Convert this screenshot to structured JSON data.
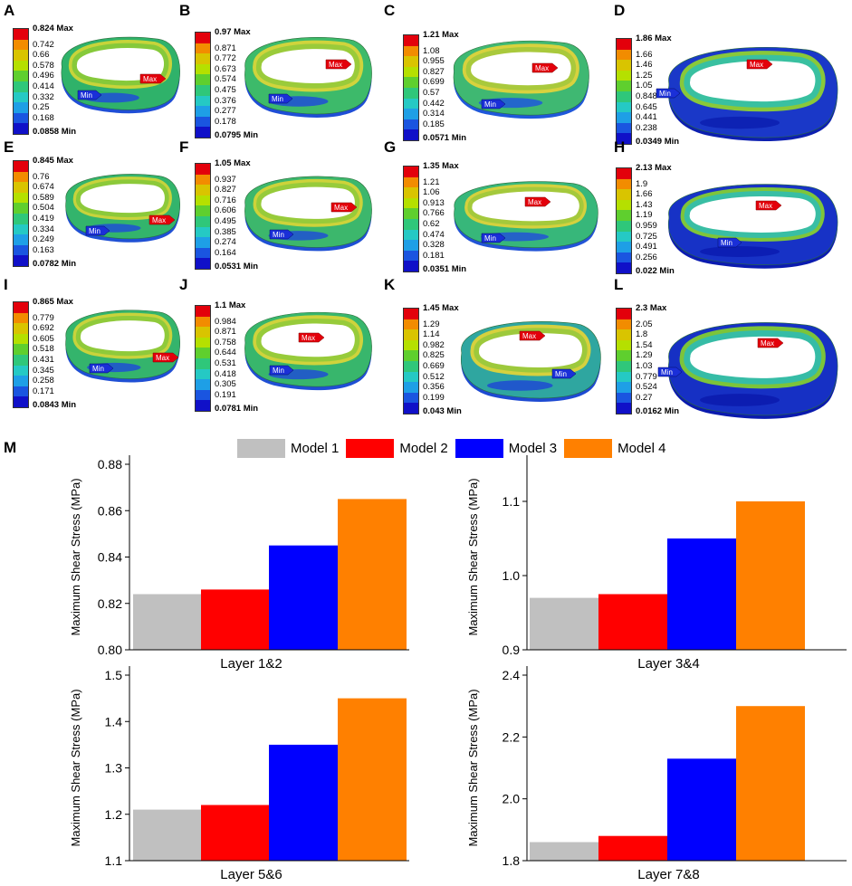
{
  "panels": [
    {
      "letter": "A",
      "max": "0.824 Max",
      "ticks": [
        "0.742",
        "0.66",
        "0.578",
        "0.496",
        "0.414",
        "0.332",
        "0.25",
        "0.168"
      ],
      "min": "0.0858 Min",
      "max_tag": "Max",
      "min_tag": "Min"
    },
    {
      "letter": "B",
      "max": "0.97 Max",
      "ticks": [
        "0.871",
        "0.772",
        "0.673",
        "0.574",
        "0.475",
        "0.376",
        "0.277",
        "0.178"
      ],
      "min": "0.0795 Min",
      "max_tag": "Max",
      "min_tag": "Min"
    },
    {
      "letter": "C",
      "max": "1.21 Max",
      "ticks": [
        "1.08",
        "0.955",
        "0.827",
        "0.699",
        "0.57",
        "0.442",
        "0.314",
        "0.185"
      ],
      "min": "0.0571 Min",
      "max_tag": "Max",
      "min_tag": "Min"
    },
    {
      "letter": "D",
      "max": "1.86 Max",
      "ticks": [
        "1.66",
        "1.46",
        "1.25",
        "1.05",
        "0.848",
        "0.645",
        "0.441",
        "0.238"
      ],
      "min": "0.0349 Min",
      "max_tag": "Max",
      "min_tag": "Min"
    },
    {
      "letter": "E",
      "max": "0.845 Max",
      "ticks": [
        "0.76",
        "0.674",
        "0.589",
        "0.504",
        "0.419",
        "0.334",
        "0.249",
        "0.163"
      ],
      "min": "0.0782 Min",
      "max_tag": "Max",
      "min_tag": "Min"
    },
    {
      "letter": "F",
      "max": "1.05 Max",
      "ticks": [
        "0.937",
        "0.827",
        "0.716",
        "0.606",
        "0.495",
        "0.385",
        "0.274",
        "0.164"
      ],
      "min": "0.0531 Min",
      "max_tag": "Max",
      "min_tag": "Min"
    },
    {
      "letter": "G",
      "max": "1.35 Max",
      "ticks": [
        "1.21",
        "1.06",
        "0.913",
        "0.766",
        "0.62",
        "0.474",
        "0.328",
        "0.181"
      ],
      "min": "0.0351 Min",
      "max_tag": "Max",
      "min_tag": "Min"
    },
    {
      "letter": "H",
      "max": "2.13 Max",
      "ticks": [
        "1.9",
        "1.66",
        "1.43",
        "1.19",
        "0.959",
        "0.725",
        "0.491",
        "0.256"
      ],
      "min": "0.022 Min",
      "max_tag": "Max",
      "min_tag": "Min"
    },
    {
      "letter": "I",
      "max": "0.865 Max",
      "ticks": [
        "0.779",
        "0.692",
        "0.605",
        "0.518",
        "0.431",
        "0.345",
        "0.258",
        "0.171"
      ],
      "min": "0.0843 Min",
      "max_tag": "Max",
      "min_tag": "Min"
    },
    {
      "letter": "J",
      "max": "1.1 Max",
      "ticks": [
        "0.984",
        "0.871",
        "0.758",
        "0.644",
        "0.531",
        "0.418",
        "0.305",
        "0.191"
      ],
      "min": "0.0781 Min",
      "max_tag": "Max",
      "min_tag": "Min"
    },
    {
      "letter": "K",
      "max": "1.45 Max",
      "ticks": [
        "1.29",
        "1.14",
        "0.982",
        "0.825",
        "0.669",
        "0.512",
        "0.356",
        "0.199"
      ],
      "min": "0.043 Min",
      "max_tag": "Max",
      "min_tag": "Min"
    },
    {
      "letter": "L",
      "max": "2.3 Max",
      "ticks": [
        "2.05",
        "1.8",
        "1.54",
        "1.29",
        "1.03",
        "0.779",
        "0.524",
        "0.27"
      ],
      "min": "0.0162 Min",
      "max_tag": "Max",
      "min_tag": "Min"
    }
  ],
  "scale_colors": [
    "#e3000b",
    "#f28c00",
    "#d9c400",
    "#b5e000",
    "#5fcf2e",
    "#2fc77a",
    "#25c9c4",
    "#1e9fe6",
    "#1a55e0",
    "#1010c8"
  ],
  "panel_m_letter": "M",
  "legend": [
    {
      "name": "Model 1",
      "color": "#c0c0c0"
    },
    {
      "name": "Model 2",
      "color": "#ff0000"
    },
    {
      "name": "Model 3",
      "color": "#0000ff"
    },
    {
      "name": "Model 4",
      "color": "#ff8000"
    }
  ],
  "chart_data": [
    {
      "type": "bar",
      "title": "",
      "xlabel": "Layer 1&2",
      "ylabel": "Maximum Shear Stress (MPa)",
      "series_names": [
        "Model 1",
        "Model 2",
        "Model 3",
        "Model 4"
      ],
      "values": [
        0.824,
        0.826,
        0.845,
        0.865
      ],
      "ylim": [
        0.8,
        0.88
      ],
      "yticks": [
        "0.80",
        "0.82",
        "0.84",
        "0.86",
        "0.88"
      ]
    },
    {
      "type": "bar",
      "title": "",
      "xlabel": "Layer 3&4",
      "ylabel": "Maximum Shear Stress (MPa)",
      "series_names": [
        "Model 1",
        "Model 2",
        "Model 3",
        "Model 4"
      ],
      "values": [
        0.97,
        0.975,
        1.05,
        1.1
      ],
      "ylim": [
        0.9,
        1.15
      ],
      "yticks": [
        "0.9",
        "1.0",
        "1.1"
      ]
    },
    {
      "type": "bar",
      "title": "",
      "xlabel": "Layer 5&6",
      "ylabel": "Maximum Shear Stress (MPa)",
      "series_names": [
        "Model 1",
        "Model 2",
        "Model 3",
        "Model 4"
      ],
      "values": [
        1.21,
        1.22,
        1.35,
        1.45
      ],
      "ylim": [
        1.1,
        1.5
      ],
      "yticks": [
        "1.1",
        "1.2",
        "1.3",
        "1.4",
        "1.5"
      ]
    },
    {
      "type": "bar",
      "title": "",
      "xlabel": "Layer 7&8",
      "ylabel": "Maximum Shear Stress (MPa)",
      "series_names": [
        "Model 1",
        "Model 2",
        "Model 3",
        "Model 4"
      ],
      "values": [
        1.86,
        1.88,
        2.13,
        2.3
      ],
      "ylim": [
        1.8,
        2.4
      ],
      "yticks": [
        "1.8",
        "2.0",
        "2.2",
        "2.4"
      ]
    }
  ]
}
